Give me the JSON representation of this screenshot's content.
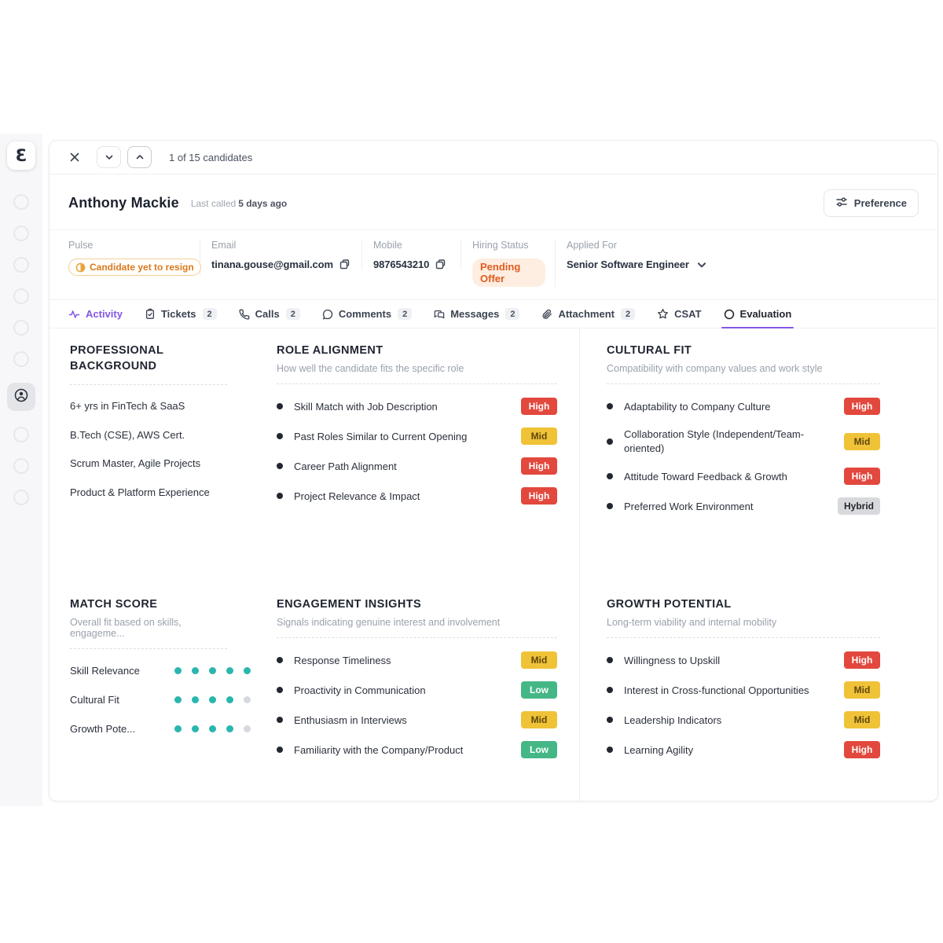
{
  "sidebar": {
    "logo_glyph": "Ɛ",
    "items": [
      {
        "icon": "circle-outline-icon"
      },
      {
        "icon": "circle-outline-icon"
      },
      {
        "icon": "circle-outline-icon"
      },
      {
        "icon": "circle-outline-icon"
      },
      {
        "icon": "circle-outline-icon"
      },
      {
        "icon": "circle-outline-icon"
      },
      {
        "icon": "contact-icon",
        "active": true
      },
      {
        "icon": "circle-outline-icon"
      },
      {
        "icon": "circle-outline-icon"
      },
      {
        "icon": "circle-outline-icon"
      }
    ]
  },
  "topbar": {
    "counter": "1 of 15 candidates"
  },
  "header": {
    "name": "Anthony Mackie",
    "last_called_label": "Last called",
    "last_called_value": "5 days ago",
    "preference": "Preference"
  },
  "info": {
    "pulse_label": "Pulse",
    "pulse_value": "Candidate yet to resign",
    "email_label": "Email",
    "email_value": "tinana.gouse@gmail.com",
    "mobile_label": "Mobile",
    "mobile_value": "9876543210",
    "hiring_label": "Hiring Status",
    "hiring_value": "Pending Offer",
    "applied_label": "Applied For",
    "applied_value": "Senior Software Engineer"
  },
  "tabs": [
    {
      "label": "Activity",
      "icon": "activity-icon",
      "accent": true
    },
    {
      "label": "Tickets",
      "icon": "ticket-icon",
      "count": "2"
    },
    {
      "label": "Calls",
      "icon": "phone-icon",
      "count": "2"
    },
    {
      "label": "Comments",
      "icon": "comment-icon",
      "count": "2"
    },
    {
      "label": "Messages",
      "icon": "messages-icon",
      "count": "2"
    },
    {
      "label": "Attachment",
      "icon": "paperclip-icon",
      "count": "2"
    },
    {
      "label": "CSAT",
      "icon": "star-icon"
    },
    {
      "label": "Evaluation",
      "icon": "circle-icon",
      "active": true
    }
  ],
  "panels": {
    "professional_background": {
      "title": "PROFESSIONAL BACKGROUND",
      "items": [
        "6+ yrs in FinTech & SaaS",
        "B.Tech (CSE), AWS Cert.",
        "Scrum Master, Agile Projects",
        "Product & Platform Experience"
      ]
    },
    "role_alignment": {
      "title": "ROLE ALIGNMENT",
      "subtitle": "How well the candidate fits the specific role",
      "items": [
        {
          "label": "Skill Match with Job Description",
          "level": "High"
        },
        {
          "label": "Past Roles Similar to Current Opening",
          "level": "Mid"
        },
        {
          "label": "Career Path Alignment",
          "level": "High"
        },
        {
          "label": "Project Relevance & Impact",
          "level": "High"
        }
      ]
    },
    "cultural_fit": {
      "title": "CULTURAL FIT",
      "subtitle": "Compatibility with company values and work style",
      "items": [
        {
          "label": "Adaptability to Company Culture",
          "level": "High"
        },
        {
          "label": "Collaboration Style (Independent/Team-oriented)",
          "level": "Mid"
        },
        {
          "label": "Attitude Toward Feedback & Growth",
          "level": "High"
        },
        {
          "label": "Preferred Work Environment",
          "level": "Hybrid"
        }
      ]
    },
    "match_score": {
      "title": "MATCH SCORE",
      "subtitle": "Overall fit based on skills, engageme...",
      "rows": [
        {
          "label": "Skill Relevance",
          "score": 5,
          "max": 5
        },
        {
          "label": "Cultural Fit",
          "score": 4,
          "max": 5
        },
        {
          "label": "Growth Pote...",
          "score": 4,
          "max": 5
        }
      ]
    },
    "engagement_insights": {
      "title": "ENGAGEMENT INSIGHTS",
      "subtitle": "Signals indicating genuine interest and involvement",
      "items": [
        {
          "label": "Response Timeliness",
          "level": "Mid"
        },
        {
          "label": "Proactivity in Communication",
          "level": "Low"
        },
        {
          "label": "Enthusiasm in Interviews",
          "level": "Mid"
        },
        {
          "label": "Familiarity with the Company/Product",
          "level": "Low"
        }
      ]
    },
    "growth_potential": {
      "title": "GROWTH POTENTIAL",
      "subtitle": "Long-term viability and internal mobility",
      "items": [
        {
          "label": "Willingness to Upskill",
          "level": "High"
        },
        {
          "label": "Interest in Cross-functional Opportunities",
          "level": "Mid"
        },
        {
          "label": "Leadership Indicators",
          "level": "Mid"
        },
        {
          "label": "Learning Agility",
          "level": "High"
        }
      ]
    }
  },
  "colors": {
    "accent": "#8257e6",
    "high": "#e2483d",
    "mid": "#f0c237",
    "low": "#45b786",
    "hybrid": "#d8d9dc",
    "mid_text": "#5d470e",
    "dark_text": "#23272f",
    "dot_filled": "#29b6ae",
    "dot_empty": "#d5d8dd",
    "orange": "#d97a20",
    "orange_deep": "#e05c1f"
  }
}
